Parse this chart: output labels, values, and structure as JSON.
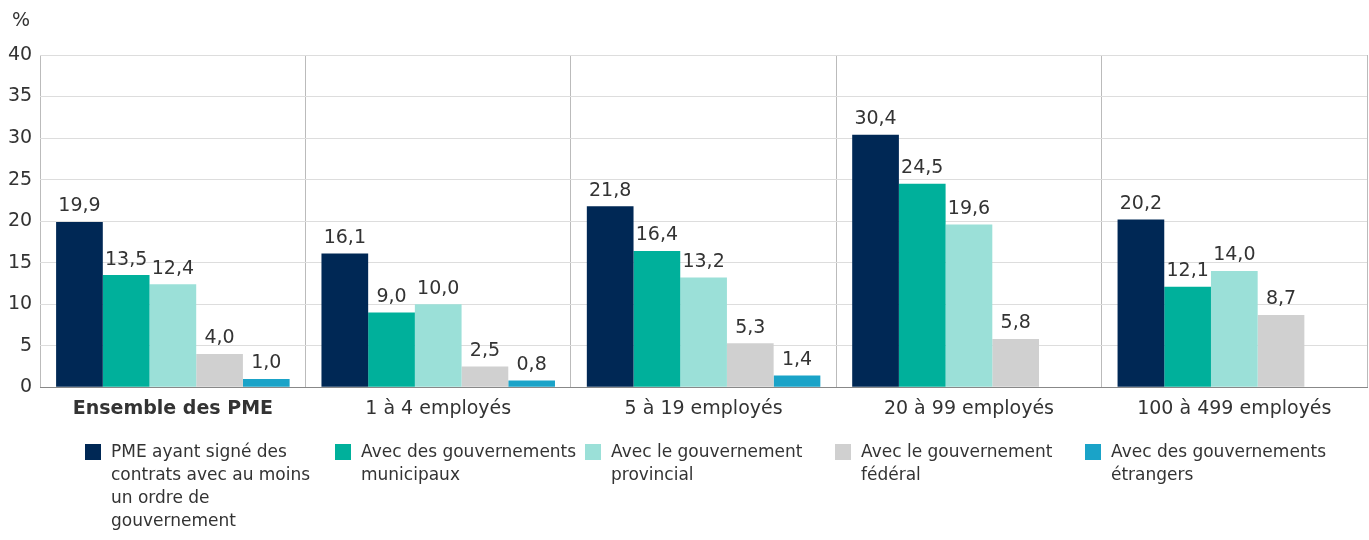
{
  "chart_data": {
    "type": "bar",
    "ylabel": "%",
    "categories": [
      "Ensemble des PME",
      "1 à 4 employés",
      "5 à 19 employés",
      "20 à 99 employés",
      "100 à 499 employés"
    ],
    "ylim": [
      0,
      40
    ],
    "yticks": [
      0,
      5,
      10,
      15,
      20,
      25,
      30,
      35,
      40
    ],
    "grid": true,
    "legend": "bottom",
    "series": [
      {
        "name": "PME ayant signé des contrats avec au moins un ordre de gouvernement",
        "color": "#002855",
        "values": [
          19.9,
          16.1,
          21.8,
          30.4,
          20.2
        ],
        "value_labels": [
          "19,9",
          "16,1",
          "21,8",
          "30,4",
          "20,2"
        ]
      },
      {
        "name": "Avec des gouvernements municipaux",
        "color": "#00b09b",
        "values": [
          13.5,
          9.0,
          16.4,
          24.5,
          12.1
        ],
        "value_labels": [
          "13,5",
          "9,0",
          "16,4",
          "24,5",
          "12,1"
        ]
      },
      {
        "name": "Avec le gouvernement provincial",
        "color": "#9be0d8",
        "values": [
          12.4,
          10.0,
          13.2,
          19.6,
          14.0
        ],
        "value_labels": [
          "12,4",
          "10,0",
          "13,2",
          "19,6",
          "14,0"
        ]
      },
      {
        "name": "Avec le gouvernement fédéral",
        "color": "#d0d0d0",
        "values": [
          4.0,
          2.5,
          5.3,
          5.8,
          8.7
        ],
        "value_labels": [
          "4,0",
          "2,5",
          "5,3",
          "5,8",
          "8,7"
        ]
      },
      {
        "name": "Avec des gouvernements étrangers",
        "color": "#1aa3c8",
        "values": [
          1.0,
          0.8,
          1.4,
          null,
          null
        ],
        "value_labels": [
          "1,0",
          "0,8",
          "1,4",
          null,
          null
        ]
      }
    ]
  }
}
